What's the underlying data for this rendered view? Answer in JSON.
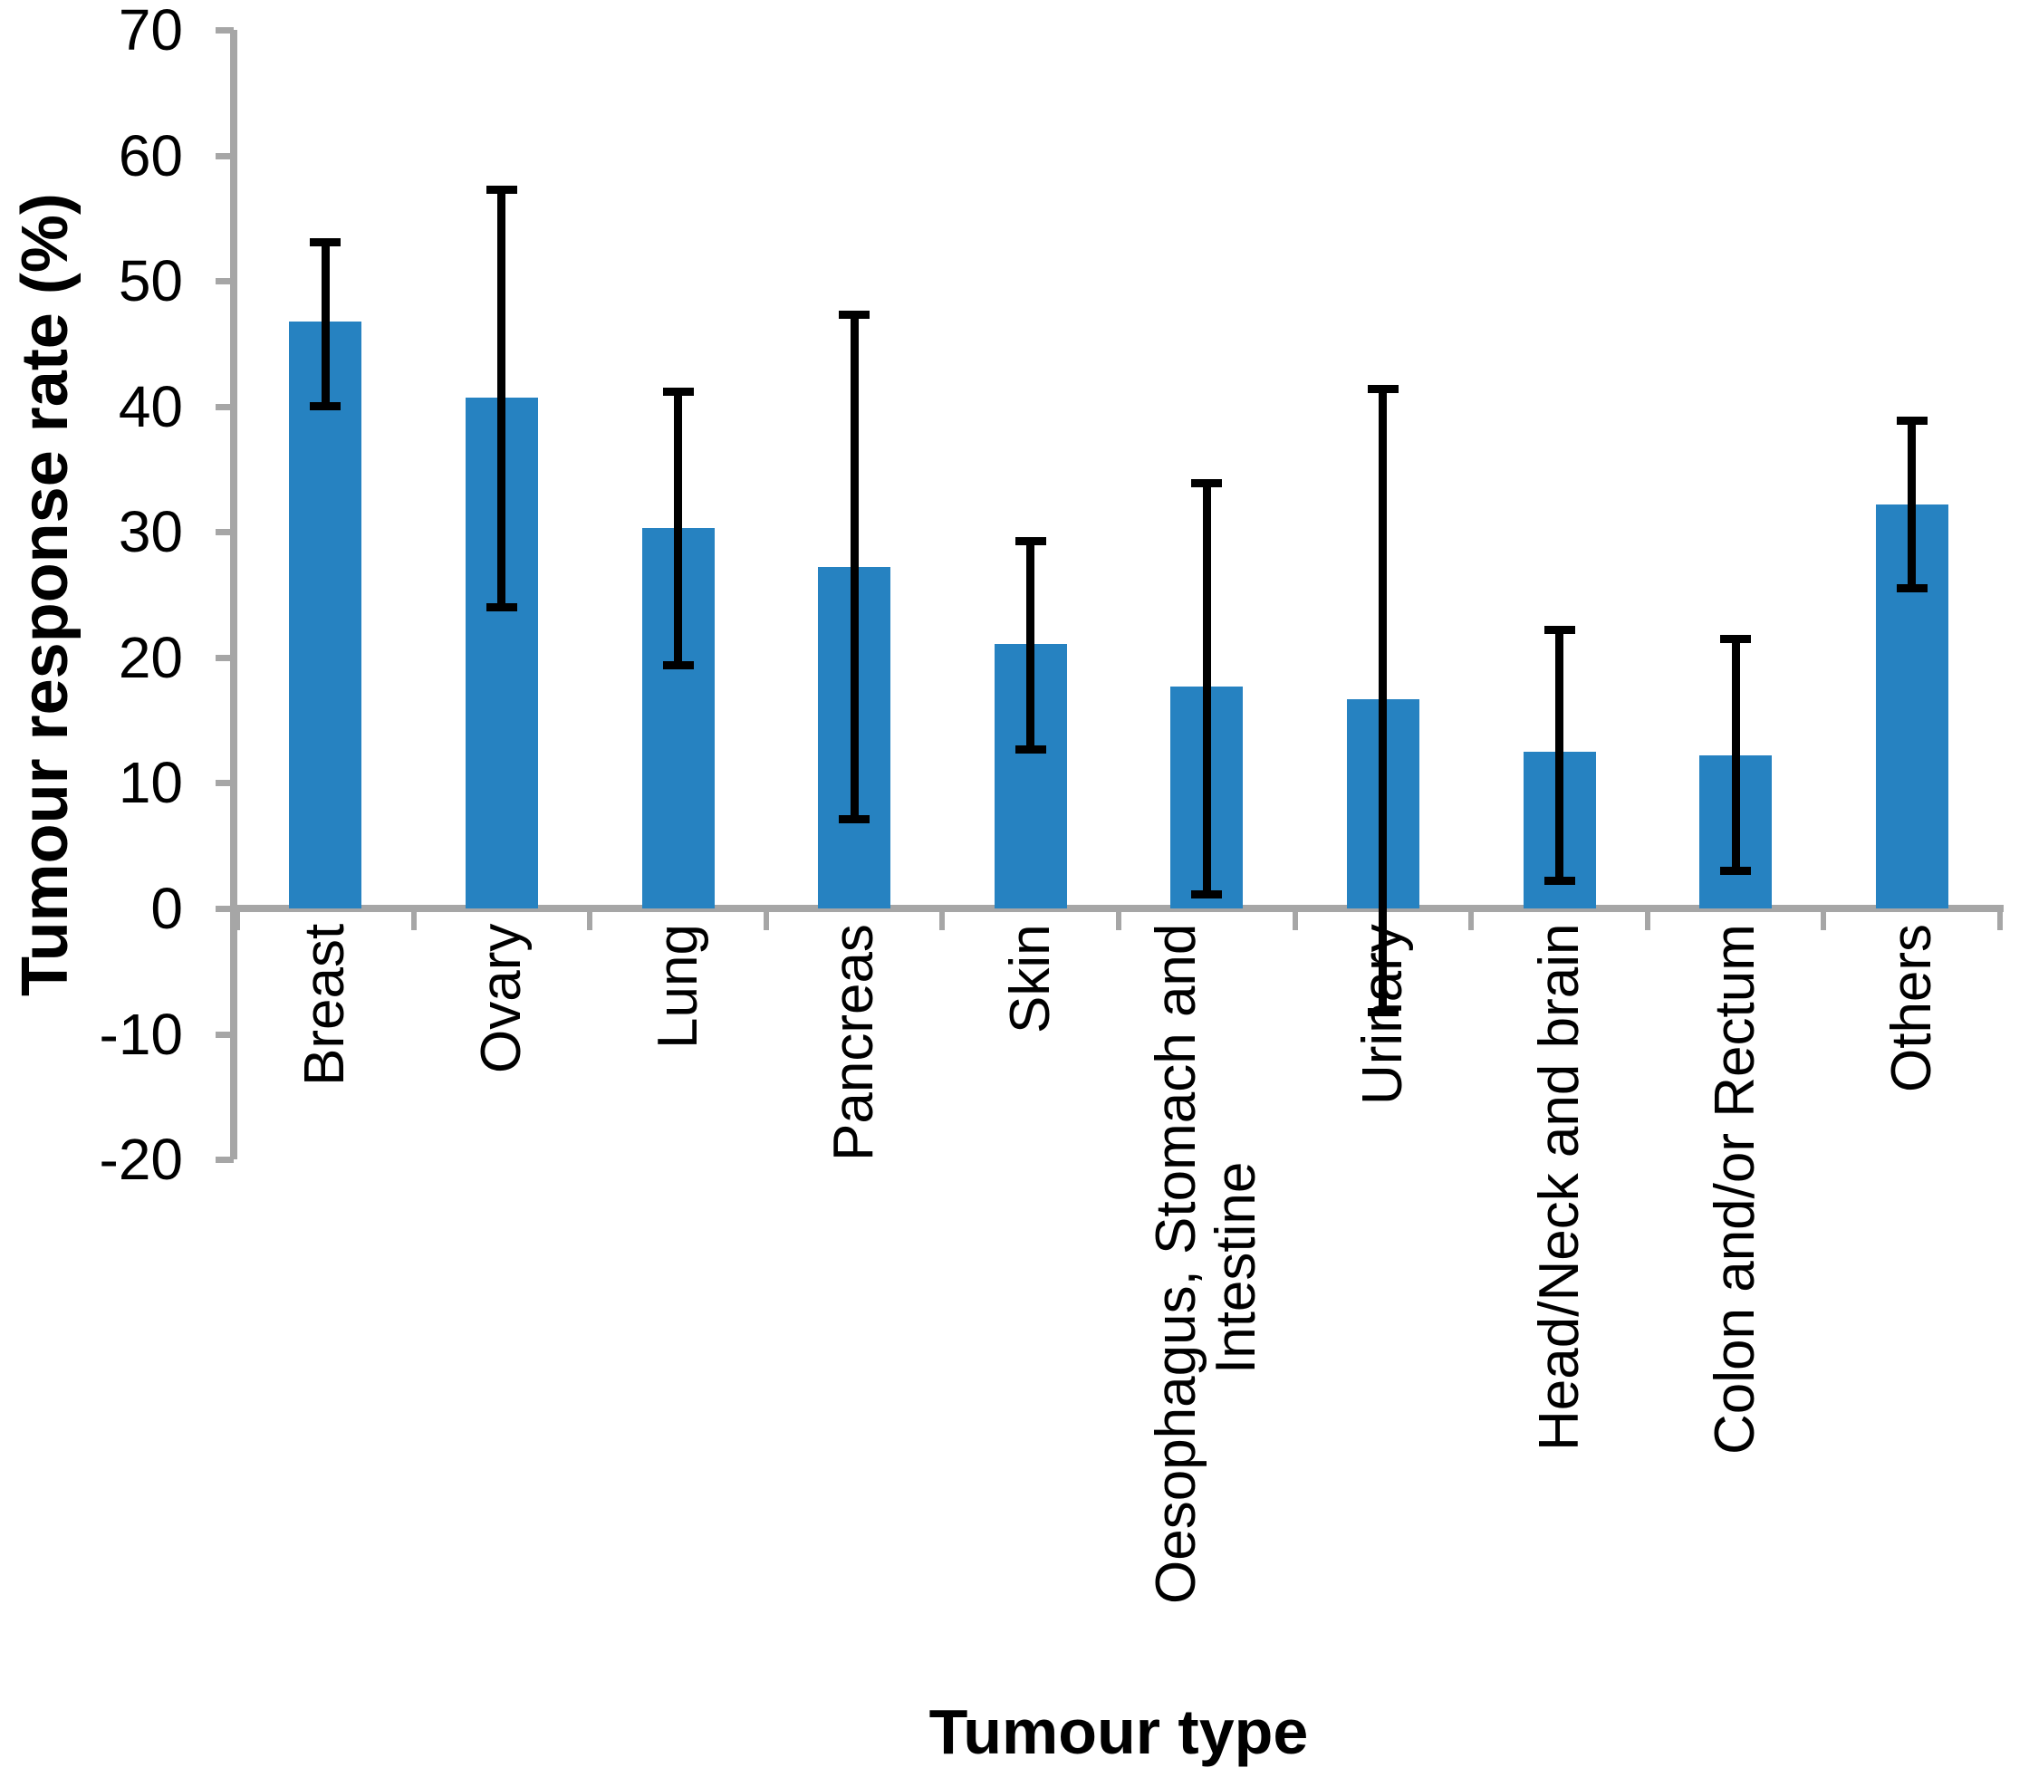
{
  "chart_data": {
    "type": "bar",
    "title": "",
    "xlabel": "Tumour type",
    "ylabel": "Tumour response rate (%)",
    "categories": [
      "Breast",
      "Ovary",
      "Lung",
      "Pancreas",
      "Skin",
      "Oesophagus, Stomach and\nIntestine",
      "Urinary",
      "Head/Neck and brain",
      "Colon and/or Rectum",
      "Others"
    ],
    "values": [
      46.8,
      40.7,
      30.3,
      27.2,
      21.1,
      17.7,
      16.7,
      12.5,
      12.2,
      32.2
    ],
    "error_low": [
      40.0,
      24.0,
      19.4,
      7.1,
      12.7,
      1.1,
      -8.3,
      2.2,
      3.0,
      25.5
    ],
    "error_high": [
      53.1,
      57.3,
      41.2,
      47.3,
      29.3,
      33.9,
      41.4,
      22.2,
      21.5,
      38.9
    ],
    "ylim": [
      -20,
      70
    ],
    "ytick_step": 10,
    "grid": "off",
    "legend": "none",
    "bar_color": "#2682c1",
    "axis_color": "#a6a6a6",
    "error_color": "#000000"
  }
}
